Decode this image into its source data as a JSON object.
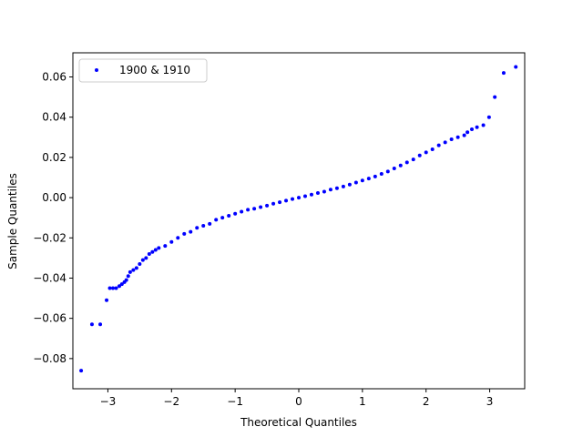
{
  "chart_data": {
    "type": "scatter",
    "title": "",
    "xlabel": "Theoretical Quantiles",
    "ylabel": "Sample Quantiles",
    "xlim": [
      -3.55,
      3.55
    ],
    "ylim": [
      -0.095,
      0.072
    ],
    "xticks": [
      -3,
      -2,
      -1,
      0,
      1,
      2,
      3
    ],
    "xtick_labels": [
      "−3",
      "−2",
      "−1",
      "0",
      "1",
      "2",
      "3"
    ],
    "yticks": [
      0.06,
      0.04,
      0.02,
      0.0,
      -0.02,
      -0.04,
      -0.06,
      -0.08
    ],
    "ytick_labels": [
      "0.06",
      "0.04",
      "0.02",
      "0.00",
      "−0.02",
      "−0.04",
      "−0.06",
      "−0.08"
    ],
    "legend_position": "top-left",
    "grid": false,
    "series": [
      {
        "name": "1900 & 1910",
        "color": "#0000ff",
        "marker": "circle",
        "points": [
          [
            -3.42,
            -0.086
          ],
          [
            -3.25,
            -0.063
          ],
          [
            -3.12,
            -0.063
          ],
          [
            -3.02,
            -0.051
          ],
          [
            -2.97,
            -0.045
          ],
          [
            -2.92,
            -0.045
          ],
          [
            -2.87,
            -0.045
          ],
          [
            -2.82,
            -0.044
          ],
          [
            -2.78,
            -0.043
          ],
          [
            -2.74,
            -0.042
          ],
          [
            -2.71,
            -0.041
          ],
          [
            -2.68,
            -0.039
          ],
          [
            -2.65,
            -0.037
          ],
          [
            -2.6,
            -0.036
          ],
          [
            -2.55,
            -0.035
          ],
          [
            -2.5,
            -0.033
          ],
          [
            -2.45,
            -0.031
          ],
          [
            -2.4,
            -0.03
          ],
          [
            -2.35,
            -0.028
          ],
          [
            -2.3,
            -0.027
          ],
          [
            -2.25,
            -0.026
          ],
          [
            -2.2,
            -0.025
          ],
          [
            -2.1,
            -0.024
          ],
          [
            -2.0,
            -0.022
          ],
          [
            -1.9,
            -0.02
          ],
          [
            -1.8,
            -0.018
          ],
          [
            -1.7,
            -0.017
          ],
          [
            -1.6,
            -0.015
          ],
          [
            -1.5,
            -0.014
          ],
          [
            -1.4,
            -0.013
          ],
          [
            -1.3,
            -0.011
          ],
          [
            -1.2,
            -0.01
          ],
          [
            -1.1,
            -0.009
          ],
          [
            -1.0,
            -0.008
          ],
          [
            -0.9,
            -0.007
          ],
          [
            -0.8,
            -0.006
          ],
          [
            -0.7,
            -0.0055
          ],
          [
            -0.6,
            -0.0047
          ],
          [
            -0.5,
            -0.004
          ],
          [
            -0.4,
            -0.003
          ],
          [
            -0.3,
            -0.0023
          ],
          [
            -0.2,
            -0.0015
          ],
          [
            -0.1,
            -0.0007
          ],
          [
            0.0,
            0.0
          ],
          [
            0.1,
            0.0007
          ],
          [
            0.2,
            0.0015
          ],
          [
            0.3,
            0.0023
          ],
          [
            0.4,
            0.003
          ],
          [
            0.5,
            0.004
          ],
          [
            0.6,
            0.0047
          ],
          [
            0.7,
            0.0055
          ],
          [
            0.8,
            0.0065
          ],
          [
            0.9,
            0.0075
          ],
          [
            1.0,
            0.0085
          ],
          [
            1.1,
            0.0095
          ],
          [
            1.2,
            0.0105
          ],
          [
            1.3,
            0.0118
          ],
          [
            1.4,
            0.013
          ],
          [
            1.5,
            0.0145
          ],
          [
            1.6,
            0.016
          ],
          [
            1.7,
            0.0175
          ],
          [
            1.8,
            0.019
          ],
          [
            1.9,
            0.021
          ],
          [
            2.0,
            0.0225
          ],
          [
            2.1,
            0.024
          ],
          [
            2.2,
            0.026
          ],
          [
            2.3,
            0.0275
          ],
          [
            2.4,
            0.029
          ],
          [
            2.5,
            0.03
          ],
          [
            2.6,
            0.031
          ],
          [
            2.65,
            0.0325
          ],
          [
            2.72,
            0.034
          ],
          [
            2.8,
            0.035
          ],
          [
            2.9,
            0.036
          ],
          [
            2.99,
            0.04
          ],
          [
            3.08,
            0.05
          ],
          [
            3.22,
            0.062
          ],
          [
            3.41,
            0.065
          ]
        ]
      }
    ]
  }
}
